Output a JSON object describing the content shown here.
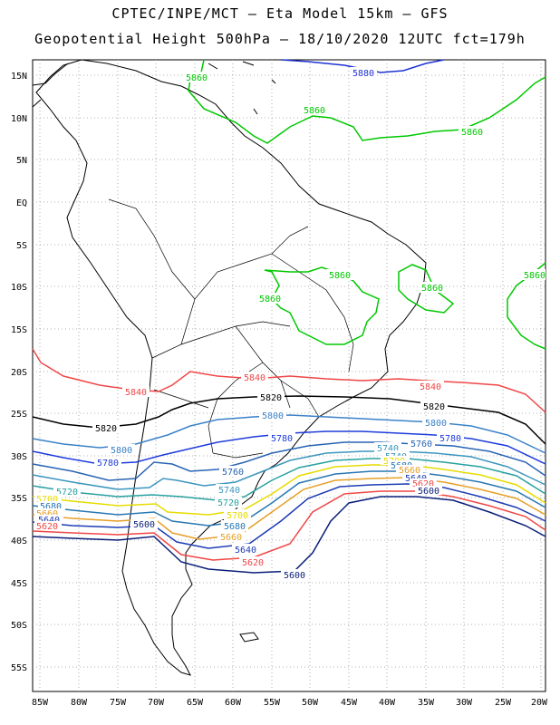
{
  "title_line1": "CPTEC/INPE/MCT –  Eta Model 15km – GFS",
  "title_line2": "Geopotential Height 500hPa – 18/10/2020 12UTC fct=179h",
  "lat_labels": [
    "15N",
    "10N",
    "5N",
    "EQ",
    "5S",
    "10S",
    "15S",
    "20S",
    "25S",
    "30S",
    "35S",
    "40S",
    "45S",
    "50S",
    "55S"
  ],
  "lon_labels": [
    "85W",
    "80W",
    "75W",
    "70W",
    "65W",
    "60W",
    "55W",
    "50W",
    "45W",
    "40W",
    "35W",
    "30W",
    "25W",
    "20W"
  ],
  "contours": [
    {
      "value": "5880",
      "color": "#1e32d2",
      "labels": [
        "5880"
      ]
    },
    {
      "value": "5860",
      "color": "#00c800",
      "labels": [
        "5860",
        "5860",
        "5860",
        "5860",
        "5860",
        "5860",
        "5860"
      ]
    },
    {
      "value": "5840",
      "color": "#f04646",
      "labels": [
        "5840",
        "5840",
        "5840"
      ]
    },
    {
      "value": "5820",
      "color": "#000000",
      "labels": [
        "5820",
        "5820",
        "5820"
      ]
    },
    {
      "value": "5800",
      "color": "#3c82c8",
      "labels": [
        "5800",
        "5800",
        "5800"
      ]
    },
    {
      "value": "5780",
      "color": "#1e3cdc",
      "labels": [
        "5780",
        "5780",
        "5780"
      ]
    },
    {
      "value": "5760",
      "color": "#2864b4",
      "labels": [
        "5760",
        "5760"
      ]
    },
    {
      "value": "5740",
      "color": "#3c96be",
      "labels": [
        "5740",
        "5740",
        "5740"
      ]
    },
    {
      "value": "5720",
      "color": "#28a0a0",
      "labels": [
        "5720",
        "5720"
      ]
    },
    {
      "value": "5700",
      "color": "#e6dc00",
      "labels": [
        "5700",
        "5700",
        "5700"
      ]
    },
    {
      "value": "5680",
      "color": "#2878b4",
      "labels": [
        "5680",
        "5680",
        "5680"
      ]
    },
    {
      "value": "5660",
      "color": "#e6a028",
      "labels": [
        "5660",
        "5660",
        "5660"
      ]
    },
    {
      "value": "5640",
      "color": "#1e3cb4",
      "labels": [
        "5640",
        "5640",
        "5640"
      ]
    },
    {
      "value": "5620",
      "color": "#f04646",
      "labels": [
        "5620",
        "5620",
        "5620"
      ]
    },
    {
      "value": "5600",
      "color": "#0a1e78",
      "labels": [
        "5600",
        "5600",
        "5600"
      ]
    }
  ]
}
